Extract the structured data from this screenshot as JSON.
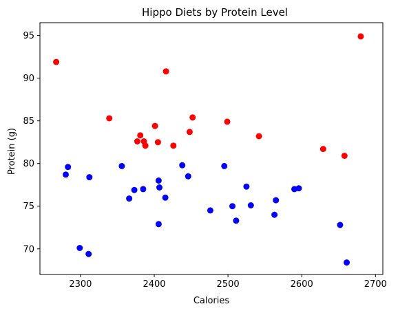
{
  "chart_data": {
    "type": "scatter",
    "title": "Hippo Diets by Protein Level",
    "xlabel": "Calories",
    "ylabel": "Protein (g)",
    "xlim": [
      2245,
      2710
    ],
    "ylim": [
      67,
      96.5
    ],
    "xticks": [
      2300,
      2400,
      2500,
      2600,
      2700
    ],
    "yticks": [
      70,
      75,
      80,
      85,
      90,
      95
    ],
    "grid": false,
    "series": [
      {
        "color": "#ff0000",
        "points": [
          [
            2267,
            91.9
          ],
          [
            2339,
            85.3
          ],
          [
            2377,
            82.6
          ],
          [
            2381,
            83.3
          ],
          [
            2386,
            82.6
          ],
          [
            2388,
            82.1
          ],
          [
            2401,
            84.4
          ],
          [
            2405,
            82.5
          ],
          [
            2416,
            90.8
          ],
          [
            2426,
            82.1
          ],
          [
            2448,
            83.7
          ],
          [
            2452,
            85.4
          ],
          [
            2499,
            84.9
          ],
          [
            2542,
            83.2
          ],
          [
            2629,
            81.7
          ],
          [
            2658,
            80.9
          ],
          [
            2680,
            94.9
          ]
        ]
      },
      {
        "color": "#0000ff",
        "points": [
          [
            2280,
            78.7
          ],
          [
            2283,
            79.6
          ],
          [
            2299,
            70.1
          ],
          [
            2311,
            69.4
          ],
          [
            2312,
            78.4
          ],
          [
            2356,
            79.7
          ],
          [
            2366,
            75.9
          ],
          [
            2373,
            76.9
          ],
          [
            2385,
            77.0
          ],
          [
            2406,
            78.0
          ],
          [
            2407,
            77.2
          ],
          [
            2406,
            72.9
          ],
          [
            2415,
            76.0
          ],
          [
            2438,
            79.8
          ],
          [
            2446,
            78.5
          ],
          [
            2476,
            74.5
          ],
          [
            2495,
            79.7
          ],
          [
            2506,
            75.0
          ],
          [
            2511,
            73.3
          ],
          [
            2525,
            77.3
          ],
          [
            2531,
            75.1
          ],
          [
            2563,
            74.0
          ],
          [
            2565,
            75.7
          ],
          [
            2590,
            77.0
          ],
          [
            2596,
            77.1
          ],
          [
            2652,
            72.8
          ],
          [
            2661,
            68.4
          ]
        ]
      }
    ]
  }
}
